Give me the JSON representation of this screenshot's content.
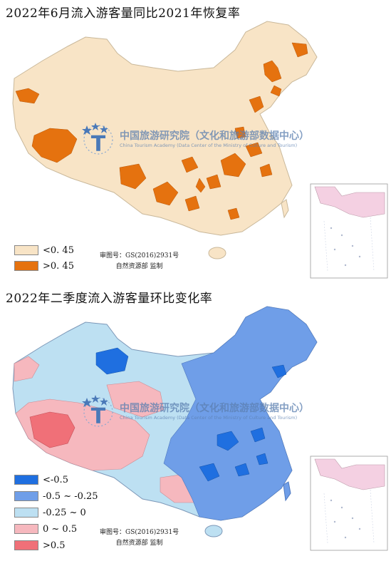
{
  "maps": [
    {
      "title": "2022年6月流入游客量同比2021年恢复率",
      "legend": [
        {
          "label": "<0. 45",
          "color": "#f8e4c6"
        },
        {
          "label": ">0. 45",
          "color": "#e5720f"
        }
      ],
      "credit": [
        "审图号：GS(2016)2931号",
        "自然资源部  监制"
      ]
    },
    {
      "title": "2022年二季度流入游客量环比变化率",
      "legend": [
        {
          "label": "<-0.5",
          "color": "#1f6fe0"
        },
        {
          "label": "-0.5 ~ -0.25",
          "color": "#6f9ee8"
        },
        {
          "label": "-0.25 ~ 0",
          "color": "#bde0f2"
        },
        {
          "label": "0 ~ 0.5",
          "color": "#f6b8be"
        },
        {
          "label": ">0.5",
          "color": "#f07078"
        }
      ],
      "credit": [
        "审图号：GS(2016)2931号",
        "自然资源部  监制"
      ]
    }
  ],
  "watermark": {
    "cn": "中国旅游研究院（文化和旅游部数据中心）",
    "en": "China Tourism Academy (Data Center of the Ministry of Culture and Tourism)",
    "logo_letter": "T",
    "logo_color": "#4a79b8"
  }
}
